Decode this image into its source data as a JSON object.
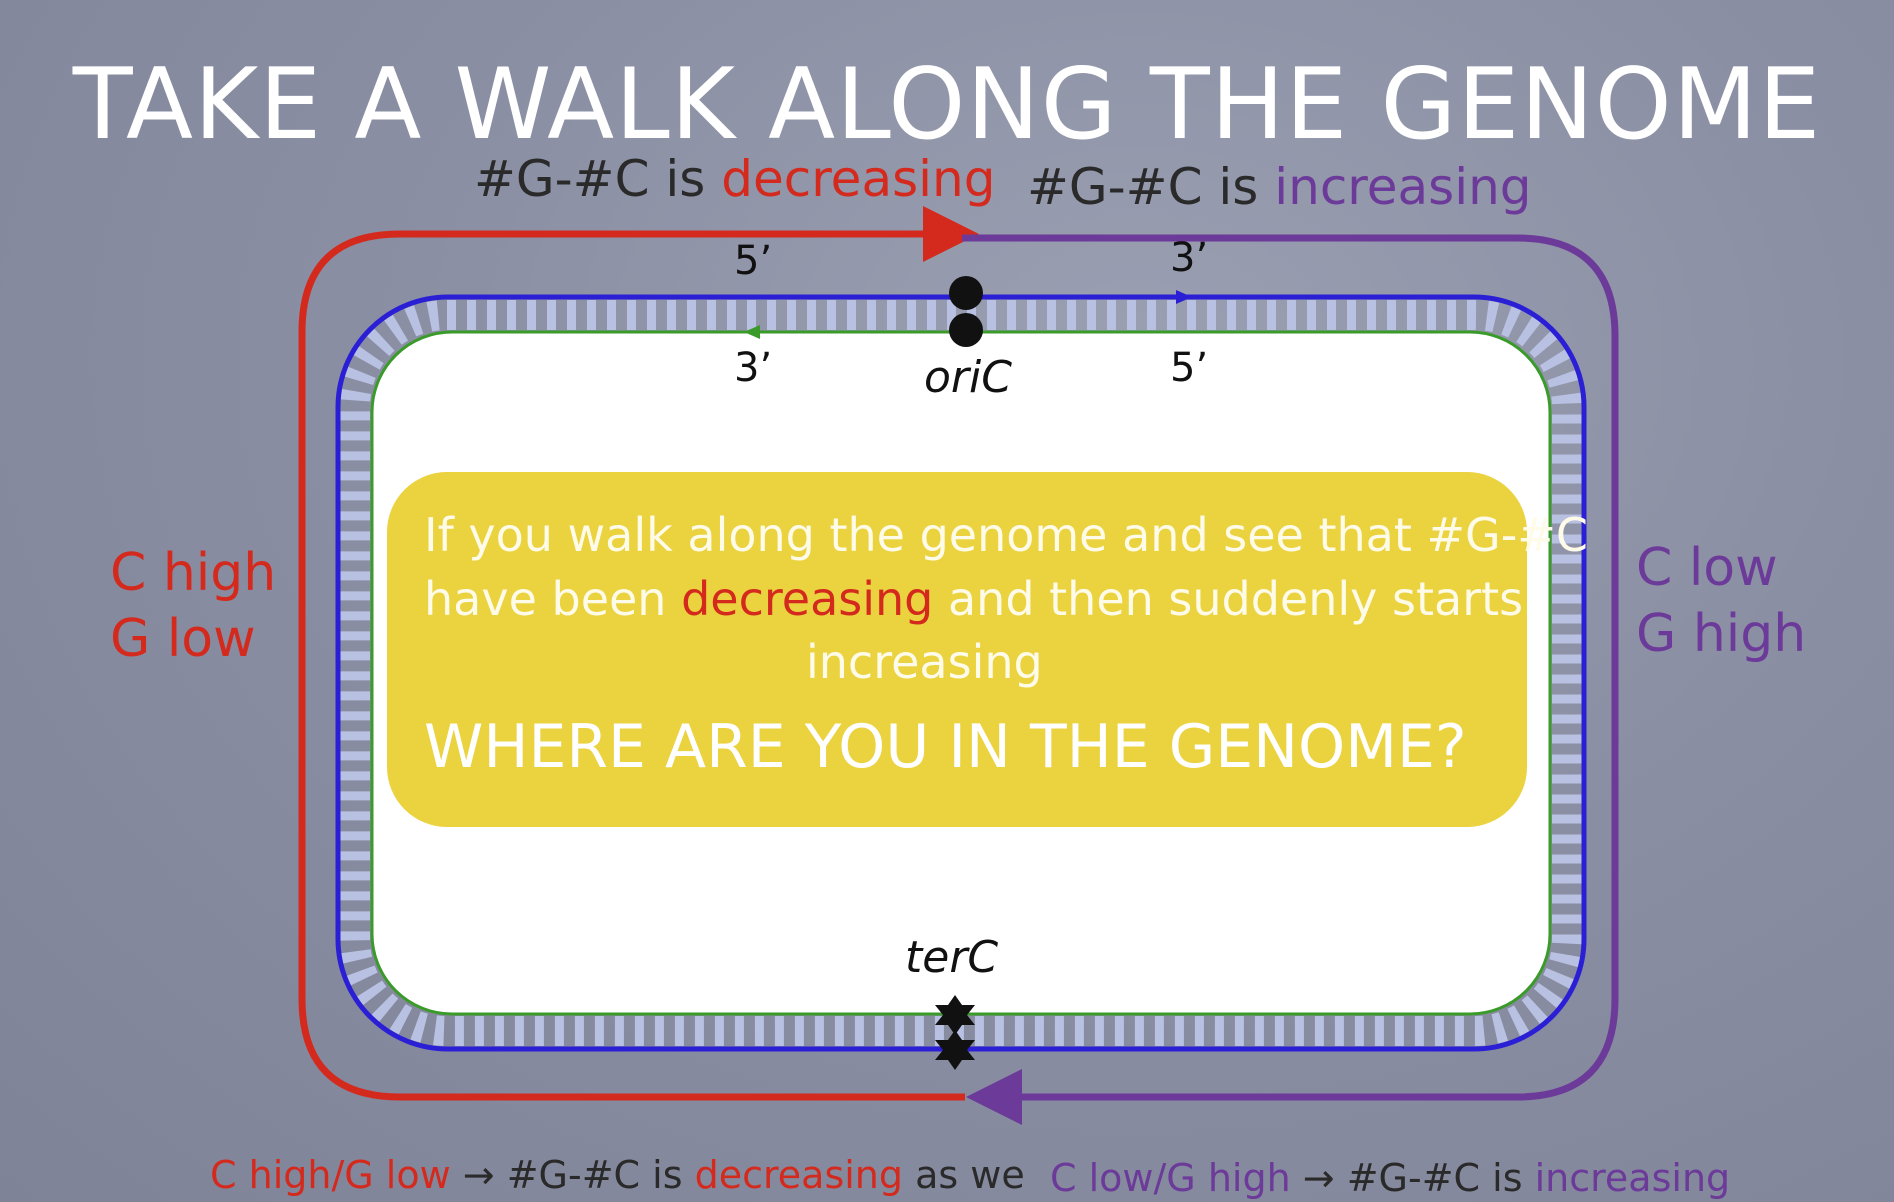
{
  "title": "TAKE A WALK ALONG THE GENOME",
  "top_labels": {
    "left": {
      "prefix": "#G-#C is",
      "emphasis": "decreasing"
    },
    "right": {
      "prefix": "#G-#C is",
      "emphasis": "increasing"
    }
  },
  "strand_ends": {
    "outer_left": "5’",
    "outer_right": "3’",
    "inner_left": "3’",
    "inner_right": "5’"
  },
  "origin_label": "oriC",
  "terminus_label": "terC",
  "left_side": {
    "line1": "C high",
    "line2": "G low"
  },
  "right_side": {
    "line1": "C low",
    "line2": "G high"
  },
  "question": {
    "line1": "If you walk along the genome and see that  #G-#C",
    "line2_prefix": "have been",
    "line2_emphasis": "decreasing",
    "line2_suffix": "and then suddenly starts",
    "line3": "increasing",
    "line4": "WHERE ARE YOU IN THE  GENOME?"
  },
  "bottom_left": {
    "part1": "C high/G low",
    "part2": "→ #G-#C is",
    "part3": "decreasing",
    "part4": "as we"
  },
  "bottom_right": {
    "part1": "C low/G high",
    "part2": "→ #G-#C is",
    "part3": "increasing"
  },
  "colors": {
    "decreasing": "#d42a1e",
    "increasing": "#6c3a99",
    "outer_strand": "#2b1fd6",
    "inner_strand": "#3a9a2a",
    "question_box": "#ebd23f"
  }
}
